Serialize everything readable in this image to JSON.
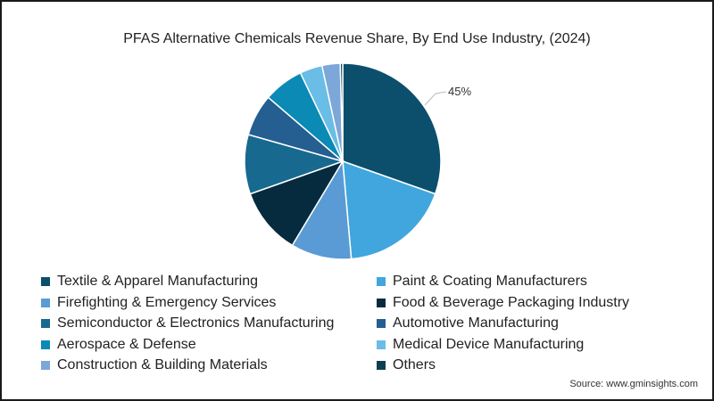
{
  "chart_data": {
    "type": "pie",
    "title": "PFAS Alternative Chemicals Revenue Share, By End Use Industry, (2024)",
    "annotation": "45%",
    "legend_position": "bottom",
    "slices": [
      {
        "label": "Textile & Apparel Manufacturing",
        "value": 30.4,
        "color": "#0b4f6c"
      },
      {
        "label": "Paint & Coating Manufacturers",
        "value": 18.2,
        "color": "#41a6de"
      },
      {
        "label": "Firefighting & Emergency Services",
        "value": 10.0,
        "color": "#5b9bd5"
      },
      {
        "label": "Food & Beverage Packaging Industry",
        "value": 11.0,
        "color": "#062b3f"
      },
      {
        "label": "Semiconductor & Electronics Manufacturing",
        "value": 9.8,
        "color": "#17698f"
      },
      {
        "label": "Automotive Manufacturing",
        "value": 6.9,
        "color": "#255e91"
      },
      {
        "label": "Aerospace & Defense",
        "value": 6.6,
        "color": "#0a8ab5"
      },
      {
        "label": "Medical Device Manufacturing",
        "value": 3.7,
        "color": "#69bde6"
      },
      {
        "label": "Construction & Building Materials",
        "value": 3.0,
        "color": "#7da7d9"
      },
      {
        "label": "Others",
        "value": 0.4,
        "color": "#0d3f52"
      }
    ]
  },
  "source": "Source: www.gminsights.com"
}
